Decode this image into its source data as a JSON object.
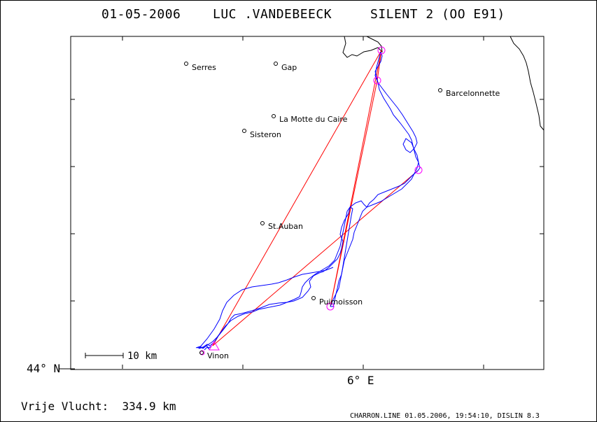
{
  "header": {
    "date": "01-05-2006",
    "pilot": "LUC .VANDEBEECK",
    "glider": "SILENT 2 (OO E91)"
  },
  "axes": {
    "lat_label": "44° N",
    "lon_label": "6° E"
  },
  "towns": [
    {
      "name": "Serres"
    },
    {
      "name": "Gap"
    },
    {
      "name": "Barcelonnette"
    },
    {
      "name": "La Motte du Caire"
    },
    {
      "name": "Sisteron"
    },
    {
      "name": "St.Auban"
    },
    {
      "name": "Puimoisson"
    },
    {
      "name": "Vinon"
    }
  ],
  "scale_bar": {
    "label": "10 km"
  },
  "footer": {
    "distance": "Vrije Vlucht:  334.9 km",
    "credits": "CHARRON.LINE 01.05.2006, 19:54:10, DISLIN 8.3"
  },
  "colors": {
    "track": "#0000ff",
    "task": "#ff0000",
    "turnpoint": "#ff00ff",
    "border": "#000000"
  }
}
